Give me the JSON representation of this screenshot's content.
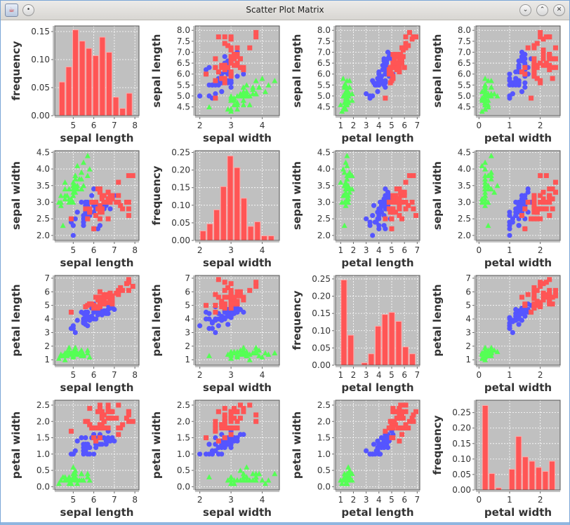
{
  "window": {
    "title": "Scatter Plot Matrix",
    "icons": [
      "java-app-icon",
      "menu-icon",
      "minimize-icon",
      "maximize-icon",
      "close-icon"
    ]
  },
  "colors": {
    "setosa": "#55ff55",
    "versicolor": "#5555ff",
    "virginica": "#ff5555",
    "histogram": "#ff5555",
    "plot_bg": "#c0c0c0"
  },
  "chart_data": {
    "type": "scatter-matrix",
    "frequency_label": "frequency",
    "variables": [
      {
        "name": "sepal length",
        "range": [
          4.1,
          8.2
        ],
        "xticks": [
          "5",
          "6",
          "7",
          "8"
        ],
        "yticks": [
          "4.5",
          "5.0",
          "5.5",
          "6.0",
          "6.5",
          "7.0",
          "7.5",
          "8.0"
        ]
      },
      {
        "name": "sepal width",
        "range": [
          1.85,
          4.55
        ],
        "xticks": [
          "2",
          "3",
          "4"
        ],
        "yticks": [
          "2.0",
          "2.5",
          "3.0",
          "3.5",
          "4.0",
          "4.5"
        ]
      },
      {
        "name": "petal length",
        "range": [
          0.6,
          7.2
        ],
        "xticks": [
          "1",
          "2",
          "3",
          "4",
          "5",
          "6",
          "7"
        ],
        "yticks": [
          "1",
          "2",
          "3",
          "4",
          "5",
          "6",
          "7"
        ]
      },
      {
        "name": "petal width",
        "range": [
          -0.1,
          2.65
        ],
        "xticks": [
          "0",
          "1",
          "2"
        ],
        "yticks": [
          "0.0",
          "0.5",
          "1.0",
          "1.5",
          "2.0",
          "2.5"
        ]
      }
    ],
    "histograms": [
      {
        "variable": "sepal length",
        "bin_range": [
          4.3,
          7.9
        ],
        "values": [
          0.06,
          0.087,
          0.153,
          0.133,
          0.12,
          0.107,
          0.14,
          0.113,
          0.033,
          0.013,
          0.04
        ],
        "ylim": [
          0,
          0.16
        ],
        "yticks": [
          "0.00",
          "0.05",
          "0.10",
          "0.15"
        ]
      },
      {
        "variable": "sepal width",
        "bin_range": [
          2.0,
          4.4
        ],
        "values": [
          0.027,
          0.047,
          0.087,
          0.153,
          0.24,
          0.207,
          0.12,
          0.04,
          0.053,
          0.013,
          0.013
        ],
        "ylim": [
          0,
          0.255
        ],
        "yticks": [
          "0.00",
          "0.05",
          "0.10",
          "0.15",
          "0.20",
          "0.25"
        ]
      },
      {
        "variable": "petal length",
        "bin_range": [
          1.0,
          6.9
        ],
        "values": [
          0.247,
          0.087,
          0,
          0.007,
          0.033,
          0.113,
          0.147,
          0.153,
          0.127,
          0.053,
          0.033
        ],
        "ylim": [
          0,
          0.26
        ],
        "yticks": [
          "0.00",
          "0.05",
          "0.10",
          "0.15",
          "0.20",
          "0.25"
        ]
      },
      {
        "variable": "petal width",
        "bin_range": [
          0.1,
          2.5
        ],
        "values": [
          0.273,
          0.053,
          0.007,
          0,
          0.067,
          0.173,
          0.107,
          0.093,
          0.073,
          0.06,
          0.093
        ],
        "ylim": [
          0,
          0.29
        ],
        "yticks": [
          "0.00",
          "0.05",
          "0.10",
          "0.15",
          "0.20",
          "0.25"
        ]
      }
    ],
    "species": [
      {
        "key": "setosa",
        "marker": "triangle",
        "points": [
          [
            5.1,
            3.5,
            1.4,
            0.2
          ],
          [
            4.9,
            3.0,
            1.4,
            0.2
          ],
          [
            4.7,
            3.2,
            1.3,
            0.2
          ],
          [
            4.6,
            3.1,
            1.5,
            0.2
          ],
          [
            5.0,
            3.6,
            1.4,
            0.2
          ],
          [
            5.4,
            3.9,
            1.7,
            0.4
          ],
          [
            4.6,
            3.4,
            1.4,
            0.3
          ],
          [
            5.0,
            3.4,
            1.5,
            0.2
          ],
          [
            4.4,
            2.9,
            1.4,
            0.2
          ],
          [
            4.9,
            3.1,
            1.5,
            0.1
          ],
          [
            5.4,
            3.7,
            1.5,
            0.2
          ],
          [
            4.8,
            3.4,
            1.6,
            0.2
          ],
          [
            4.8,
            3.0,
            1.4,
            0.1
          ],
          [
            4.3,
            3.0,
            1.1,
            0.1
          ],
          [
            5.8,
            4.0,
            1.2,
            0.2
          ],
          [
            5.7,
            4.4,
            1.5,
            0.4
          ],
          [
            5.4,
            3.9,
            1.3,
            0.4
          ],
          [
            5.1,
            3.5,
            1.4,
            0.3
          ],
          [
            5.7,
            3.8,
            1.7,
            0.3
          ],
          [
            5.1,
            3.8,
            1.5,
            0.3
          ],
          [
            5.4,
            3.4,
            1.7,
            0.2
          ],
          [
            5.1,
            3.7,
            1.5,
            0.4
          ],
          [
            4.6,
            3.6,
            1.0,
            0.2
          ],
          [
            5.1,
            3.3,
            1.7,
            0.5
          ],
          [
            4.8,
            3.4,
            1.9,
            0.2
          ],
          [
            5.0,
            3.0,
            1.6,
            0.2
          ],
          [
            5.0,
            3.4,
            1.6,
            0.4
          ],
          [
            5.2,
            3.5,
            1.5,
            0.2
          ],
          [
            5.2,
            3.4,
            1.4,
            0.2
          ],
          [
            4.7,
            3.2,
            1.6,
            0.2
          ],
          [
            4.8,
            3.1,
            1.6,
            0.2
          ],
          [
            5.4,
            3.4,
            1.5,
            0.4
          ],
          [
            5.2,
            4.1,
            1.5,
            0.1
          ],
          [
            5.5,
            4.2,
            1.4,
            0.2
          ],
          [
            4.9,
            3.1,
            1.5,
            0.1
          ],
          [
            5.0,
            3.2,
            1.2,
            0.2
          ],
          [
            5.5,
            3.5,
            1.3,
            0.2
          ],
          [
            4.9,
            3.1,
            1.5,
            0.1
          ],
          [
            4.4,
            3.0,
            1.3,
            0.2
          ],
          [
            5.1,
            3.4,
            1.5,
            0.2
          ],
          [
            5.0,
            3.5,
            1.3,
            0.3
          ],
          [
            4.5,
            2.3,
            1.3,
            0.3
          ],
          [
            4.4,
            3.2,
            1.3,
            0.2
          ],
          [
            5.0,
            3.5,
            1.6,
            0.6
          ],
          [
            5.1,
            3.8,
            1.9,
            0.4
          ],
          [
            4.8,
            3.0,
            1.4,
            0.3
          ],
          [
            5.1,
            3.8,
            1.6,
            0.2
          ],
          [
            4.6,
            3.2,
            1.4,
            0.2
          ],
          [
            5.3,
            3.7,
            1.5,
            0.2
          ],
          [
            5.0,
            3.3,
            1.4,
            0.2
          ]
        ]
      },
      {
        "key": "versicolor",
        "marker": "circle",
        "points": [
          [
            7.0,
            3.2,
            4.7,
            1.4
          ],
          [
            6.4,
            3.2,
            4.5,
            1.5
          ],
          [
            6.9,
            3.1,
            4.9,
            1.5
          ],
          [
            5.5,
            2.3,
            4.0,
            1.3
          ],
          [
            6.5,
            2.8,
            4.6,
            1.5
          ],
          [
            5.7,
            2.8,
            4.5,
            1.3
          ],
          [
            6.3,
            3.3,
            4.7,
            1.6
          ],
          [
            4.9,
            2.4,
            3.3,
            1.0
          ],
          [
            6.6,
            2.9,
            4.6,
            1.3
          ],
          [
            5.2,
            2.7,
            3.9,
            1.4
          ],
          [
            5.0,
            2.0,
            3.5,
            1.0
          ],
          [
            5.9,
            3.0,
            4.2,
            1.5
          ],
          [
            6.0,
            2.2,
            4.0,
            1.0
          ],
          [
            6.1,
            2.9,
            4.7,
            1.4
          ],
          [
            5.6,
            2.9,
            3.6,
            1.3
          ],
          [
            6.7,
            3.1,
            4.4,
            1.4
          ],
          [
            5.6,
            3.0,
            4.5,
            1.5
          ],
          [
            5.8,
            2.7,
            4.1,
            1.0
          ],
          [
            6.2,
            2.2,
            4.5,
            1.5
          ],
          [
            5.6,
            2.5,
            3.9,
            1.1
          ],
          [
            5.9,
            3.2,
            4.8,
            1.8
          ],
          [
            6.1,
            2.8,
            4.0,
            1.3
          ],
          [
            6.3,
            2.5,
            4.9,
            1.5
          ],
          [
            6.1,
            2.8,
            4.7,
            1.2
          ],
          [
            6.4,
            2.9,
            4.3,
            1.3
          ],
          [
            6.6,
            3.0,
            4.4,
            1.4
          ],
          [
            6.8,
            2.8,
            4.8,
            1.4
          ],
          [
            6.7,
            3.0,
            5.0,
            1.7
          ],
          [
            6.0,
            2.9,
            4.5,
            1.5
          ],
          [
            5.7,
            2.6,
            3.5,
            1.0
          ],
          [
            5.5,
            2.4,
            3.8,
            1.1
          ],
          [
            5.5,
            2.4,
            3.7,
            1.0
          ],
          [
            5.8,
            2.7,
            3.9,
            1.2
          ],
          [
            6.0,
            2.7,
            5.1,
            1.6
          ],
          [
            5.4,
            3.0,
            4.5,
            1.5
          ],
          [
            6.0,
            3.4,
            4.5,
            1.6
          ],
          [
            6.7,
            3.1,
            4.7,
            1.5
          ],
          [
            6.3,
            2.3,
            4.4,
            1.3
          ],
          [
            5.6,
            3.0,
            4.1,
            1.3
          ],
          [
            5.5,
            2.5,
            4.0,
            1.3
          ],
          [
            5.5,
            2.6,
            4.4,
            1.2
          ],
          [
            6.1,
            3.0,
            4.6,
            1.4
          ],
          [
            5.8,
            2.6,
            4.0,
            1.2
          ],
          [
            5.0,
            2.3,
            3.3,
            1.0
          ],
          [
            5.6,
            2.7,
            4.2,
            1.3
          ],
          [
            5.7,
            3.0,
            4.2,
            1.2
          ],
          [
            5.7,
            2.9,
            4.2,
            1.3
          ],
          [
            6.2,
            2.9,
            4.3,
            1.3
          ],
          [
            5.1,
            2.5,
            3.0,
            1.1
          ],
          [
            5.7,
            2.8,
            4.1,
            1.3
          ]
        ]
      },
      {
        "key": "virginica",
        "marker": "square",
        "points": [
          [
            6.3,
            3.3,
            6.0,
            2.5
          ],
          [
            5.8,
            2.7,
            5.1,
            1.9
          ],
          [
            7.1,
            3.0,
            5.9,
            2.1
          ],
          [
            6.3,
            2.9,
            5.6,
            1.8
          ],
          [
            6.5,
            3.0,
            5.8,
            2.2
          ],
          [
            7.6,
            3.0,
            6.6,
            2.1
          ],
          [
            4.9,
            2.5,
            4.5,
            1.7
          ],
          [
            7.3,
            2.9,
            6.3,
            1.8
          ],
          [
            6.7,
            2.5,
            5.8,
            1.8
          ],
          [
            7.2,
            3.6,
            6.1,
            2.5
          ],
          [
            6.5,
            3.2,
            5.1,
            2.0
          ],
          [
            6.4,
            2.7,
            5.3,
            1.9
          ],
          [
            6.8,
            3.0,
            5.5,
            2.1
          ],
          [
            5.7,
            2.5,
            5.0,
            2.0
          ],
          [
            5.8,
            2.8,
            5.1,
            2.4
          ],
          [
            6.4,
            3.2,
            5.3,
            2.3
          ],
          [
            6.5,
            3.0,
            5.5,
            1.8
          ],
          [
            7.7,
            3.8,
            6.7,
            2.2
          ],
          [
            7.7,
            2.6,
            6.9,
            2.3
          ],
          [
            6.0,
            2.2,
            5.0,
            1.5
          ],
          [
            6.9,
            3.2,
            5.7,
            2.3
          ],
          [
            5.6,
            2.8,
            4.9,
            2.0
          ],
          [
            7.7,
            2.8,
            6.7,
            2.0
          ],
          [
            6.3,
            2.7,
            4.9,
            1.8
          ],
          [
            6.7,
            3.3,
            5.7,
            2.1
          ],
          [
            7.2,
            3.2,
            6.0,
            1.8
          ],
          [
            6.2,
            2.8,
            4.8,
            1.8
          ],
          [
            6.1,
            3.0,
            4.9,
            1.8
          ],
          [
            6.4,
            2.8,
            5.6,
            2.1
          ],
          [
            7.2,
            3.0,
            5.8,
            1.6
          ],
          [
            7.4,
            2.8,
            6.1,
            1.9
          ],
          [
            7.9,
            3.8,
            6.4,
            2.0
          ],
          [
            6.4,
            2.8,
            5.6,
            2.2
          ],
          [
            6.3,
            2.8,
            5.1,
            1.5
          ],
          [
            6.1,
            2.6,
            5.6,
            1.4
          ],
          [
            7.7,
            3.0,
            6.1,
            2.3
          ],
          [
            6.3,
            3.4,
            5.6,
            2.4
          ],
          [
            6.4,
            3.1,
            5.5,
            1.8
          ],
          [
            6.0,
            3.0,
            4.8,
            1.8
          ],
          [
            6.9,
            3.1,
            5.4,
            2.1
          ],
          [
            6.7,
            3.1,
            5.6,
            2.4
          ],
          [
            6.9,
            3.1,
            5.1,
            2.3
          ],
          [
            5.8,
            2.7,
            5.1,
            1.9
          ],
          [
            6.8,
            3.2,
            5.9,
            2.3
          ],
          [
            6.7,
            3.3,
            5.7,
            2.5
          ],
          [
            6.7,
            3.0,
            5.2,
            2.3
          ],
          [
            6.3,
            2.5,
            5.0,
            1.9
          ],
          [
            6.5,
            3.0,
            5.2,
            2.0
          ],
          [
            6.2,
            3.4,
            5.4,
            2.3
          ],
          [
            5.9,
            3.0,
            5.1,
            1.8
          ]
        ]
      }
    ],
    "grid": true,
    "legend": "none"
  }
}
